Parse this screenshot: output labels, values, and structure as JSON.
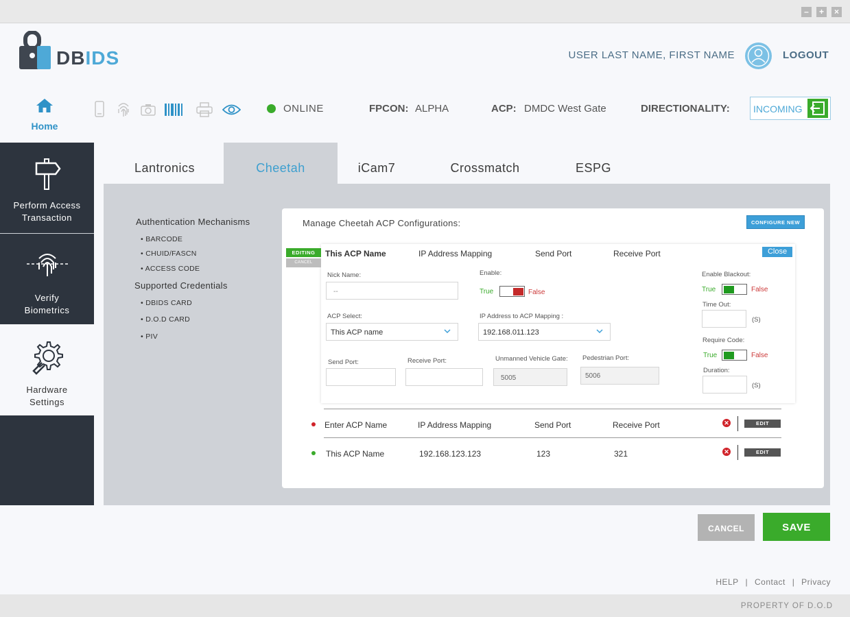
{
  "window": {
    "minimize": "–",
    "maximize": "+",
    "close": "×"
  },
  "header": {
    "logo_text_a": "DB",
    "logo_text_b": "IDS",
    "user_name": "USER LAST NAME, FIRST NAME",
    "logout": "LOGOUT",
    "home": "Home",
    "status": "ONLINE",
    "fpcon_label": "FPCON:",
    "fpcon_value": "ALPHA",
    "acp_label": "ACP:",
    "acp_value": "DMDC West Gate",
    "dir_label": "DIRECTIONALITY:",
    "dir_value": "INCOMING"
  },
  "colors": {
    "accent": "#3d9fd8",
    "online": "#3aab2b",
    "sidebar": "#2d343e",
    "danger": "#d0232a"
  },
  "sidebar": {
    "items": [
      {
        "line1": "Perform Access",
        "line2": "Transaction",
        "icon": "signpost-icon"
      },
      {
        "line1": "Verify",
        "line2": "Biometrics",
        "icon": "fingerprint-scan-icon"
      },
      {
        "line1": "Hardware",
        "line2": "Settings",
        "icon": "gear-wrench-icon"
      }
    ]
  },
  "tabs": [
    "Lantronics",
    "Cheetah",
    "iCam7",
    "Crossmatch",
    "ESPG"
  ],
  "auth": {
    "mechanisms_title": "Authentication Mechanisms",
    "mechanisms": [
      "• BARCODE",
      "• CHUID/FASCN",
      "• ACCESS CODE"
    ],
    "credentials_title": "Supported Credentials",
    "credentials": [
      "• DBIDS CARD",
      "• D.O.D CARD",
      "• PIV"
    ]
  },
  "card": {
    "title": "Manage Cheetah ACP Configurations:",
    "configure_new": "CONFIGURE NEW",
    "editing": "EDITING",
    "cancel_tag": "CANCEL",
    "close": "Close",
    "headers": {
      "name": "This ACP Name",
      "ip": "IP Address Mapping",
      "send": "Send Port",
      "receive": "Receive Port"
    },
    "form": {
      "nick_label": "Nick Name:",
      "nick_placeholder": "--",
      "enable_label": "Enable:",
      "true": "True",
      "false": "False",
      "acp_select_label": "ACP Select:",
      "acp_select_value": "This ACP name",
      "ip_map_label": "IP Address to ACP Mapping :",
      "ip_map_value": "192.168.011.123",
      "send_label": "Send Port:",
      "receive_label": "Receive Port:",
      "unmanned_label": "Unmanned Vehicle Gate:",
      "unmanned_value": "5005",
      "pedestrian_label": "Pedestrian Port:",
      "pedestrian_value": "5006",
      "blackout_label": "Enable Blackout:",
      "timeout_label": "Time Out:",
      "require_code_label": "Require Code:",
      "duration_label": "Duration:",
      "unit_s": "(S)"
    },
    "rows": [
      {
        "name": "Enter ACP Name",
        "ip": "IP Address Mapping",
        "send": "Send Port",
        "receive": "Receive Port",
        "edit": "EDIT",
        "status_color": "#d0232a"
      },
      {
        "name": "This ACP Name",
        "ip": "192.168.123.123",
        "send": "123",
        "receive": "321",
        "edit": "EDIT",
        "status_color": "#3aab2b"
      }
    ]
  },
  "actions": {
    "cancel": "CANCEL",
    "save": "SAVE"
  },
  "footer": {
    "help": "HELP",
    "sep": "|",
    "contact": "Contact",
    "privacy": "Privacy",
    "property": "PROPERTY OF D.O.D"
  }
}
